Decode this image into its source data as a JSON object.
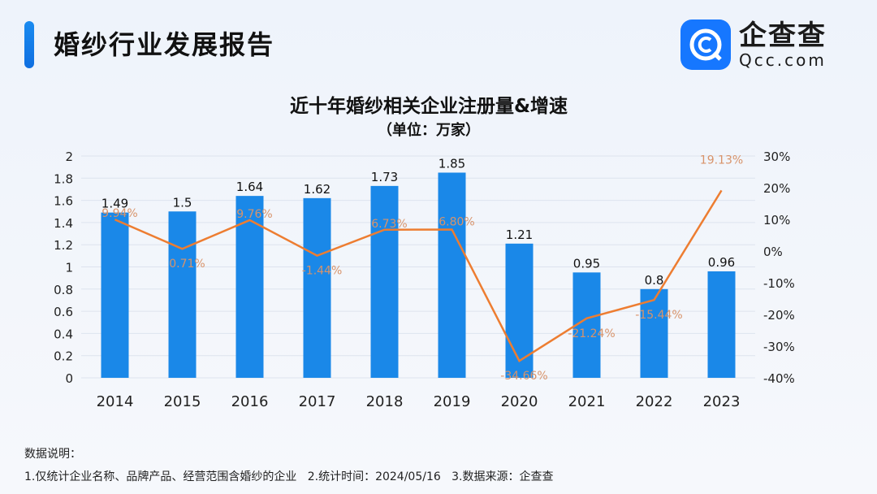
{
  "header": {
    "title": "婚纱行业发展报告"
  },
  "logo": {
    "name_cn": "企查查",
    "name_en": "Qcc.com",
    "color": "#1677ff"
  },
  "chart_data": {
    "type": "bar+line",
    "title": "近十年婚纱相关企业注册量&增速",
    "subtitle": "（单位：万家）",
    "categories": [
      "2014",
      "2015",
      "2016",
      "2017",
      "2018",
      "2019",
      "2020",
      "2021",
      "2022",
      "2023"
    ],
    "series": [
      {
        "type": "bar",
        "axis": "left",
        "color": "#1a88e8",
        "values": [
          1.49,
          1.5,
          1.64,
          1.62,
          1.73,
          1.85,
          1.21,
          0.95,
          0.8,
          0.96
        ],
        "labels": [
          "1.49",
          "1.5",
          "1.64",
          "1.62",
          "1.73",
          "1.85",
          "1.21",
          "0.95",
          "0.8",
          "0.96"
        ]
      },
      {
        "type": "line",
        "axis": "right",
        "color": "#ed7d31",
        "values": [
          9.94,
          0.71,
          9.76,
          -1.44,
          6.73,
          6.8,
          -34.66,
          -21.24,
          -15.44,
          19.13
        ],
        "labels": [
          "9.94%",
          "0.71%",
          "9.76%",
          "-1.44%",
          "6.73%",
          "6.80%",
          "-34.66%",
          "-21.24%",
          "-15.44%",
          "19.13%"
        ]
      }
    ],
    "left_axis": {
      "range": [
        0,
        2
      ],
      "ticks": [
        "0",
        "0.2",
        "0.4",
        "0.6",
        "0.8",
        "1",
        "1.2",
        "1.4",
        "1.6",
        "1.8",
        "2"
      ]
    },
    "right_axis": {
      "range": [
        -40,
        30
      ],
      "ticks": [
        "-40%",
        "-30%",
        "-20%",
        "-10%",
        "0%",
        "10%",
        "20%",
        "30%"
      ]
    },
    "grid": true
  },
  "footer": {
    "heading": "数据说明：",
    "note": "1.仅统计企业名称、品牌产品、经营范围含婚纱的企业   2.统计时间：2024/05/16   3.数据来源：企查查"
  }
}
